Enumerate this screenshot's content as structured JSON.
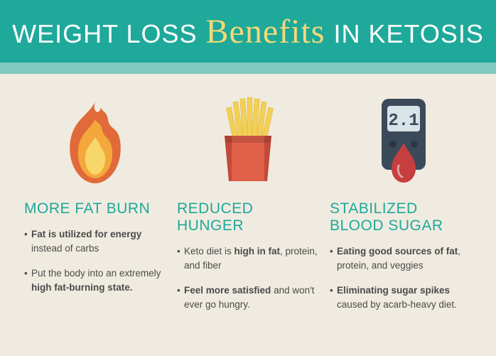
{
  "header": {
    "part1": "Weight Loss",
    "script": "Benefits",
    "part2": "in Ketosis"
  },
  "colors": {
    "header_bg": "#1ea99a",
    "subbar_bg": "#7fc9c0",
    "page_bg": "#f0ebe0",
    "title_color": "#1ea99a",
    "script_color": "#f3d878",
    "flame_outer": "#e06a3a",
    "flame_mid": "#f4a83c",
    "flame_inner": "#f7d76a",
    "fries_box": "#e0604a",
    "fries_box_dark": "#c24a3a",
    "fries_yellow": "#f3cf55",
    "meter_body": "#3b4a5a",
    "meter_screen": "#d8e4e8",
    "blood_drop": "#c63e3e"
  },
  "columns": [
    {
      "icon": "flame",
      "title": "More Fat Burn",
      "bullets": [
        {
          "html": "<span class='bold'>Fat is utilized for energy</span> instead of carbs"
        },
        {
          "html": "Put the body into an extremely <span class='bold'>high fat-burning state.</span>"
        }
      ]
    },
    {
      "icon": "fries",
      "title": "Reduced Hunger",
      "bullets": [
        {
          "html": "Keto diet is <span class='bold'>high in fat</span>, protein, and fiber"
        },
        {
          "html": "<span class='bold'>Feel more satisfied</span> and won't ever go hungry."
        }
      ]
    },
    {
      "icon": "meter",
      "title": "Stabilized Blood Sugar",
      "bullets": [
        {
          "html": "<span class='bold'>Eating good sources of fat</span>, protein, and veggies"
        },
        {
          "html": "<span class='bold'>Eliminating sugar spikes</span> caused by acarb-heavy diet."
        }
      ]
    }
  ],
  "meter_reading": "2.1"
}
